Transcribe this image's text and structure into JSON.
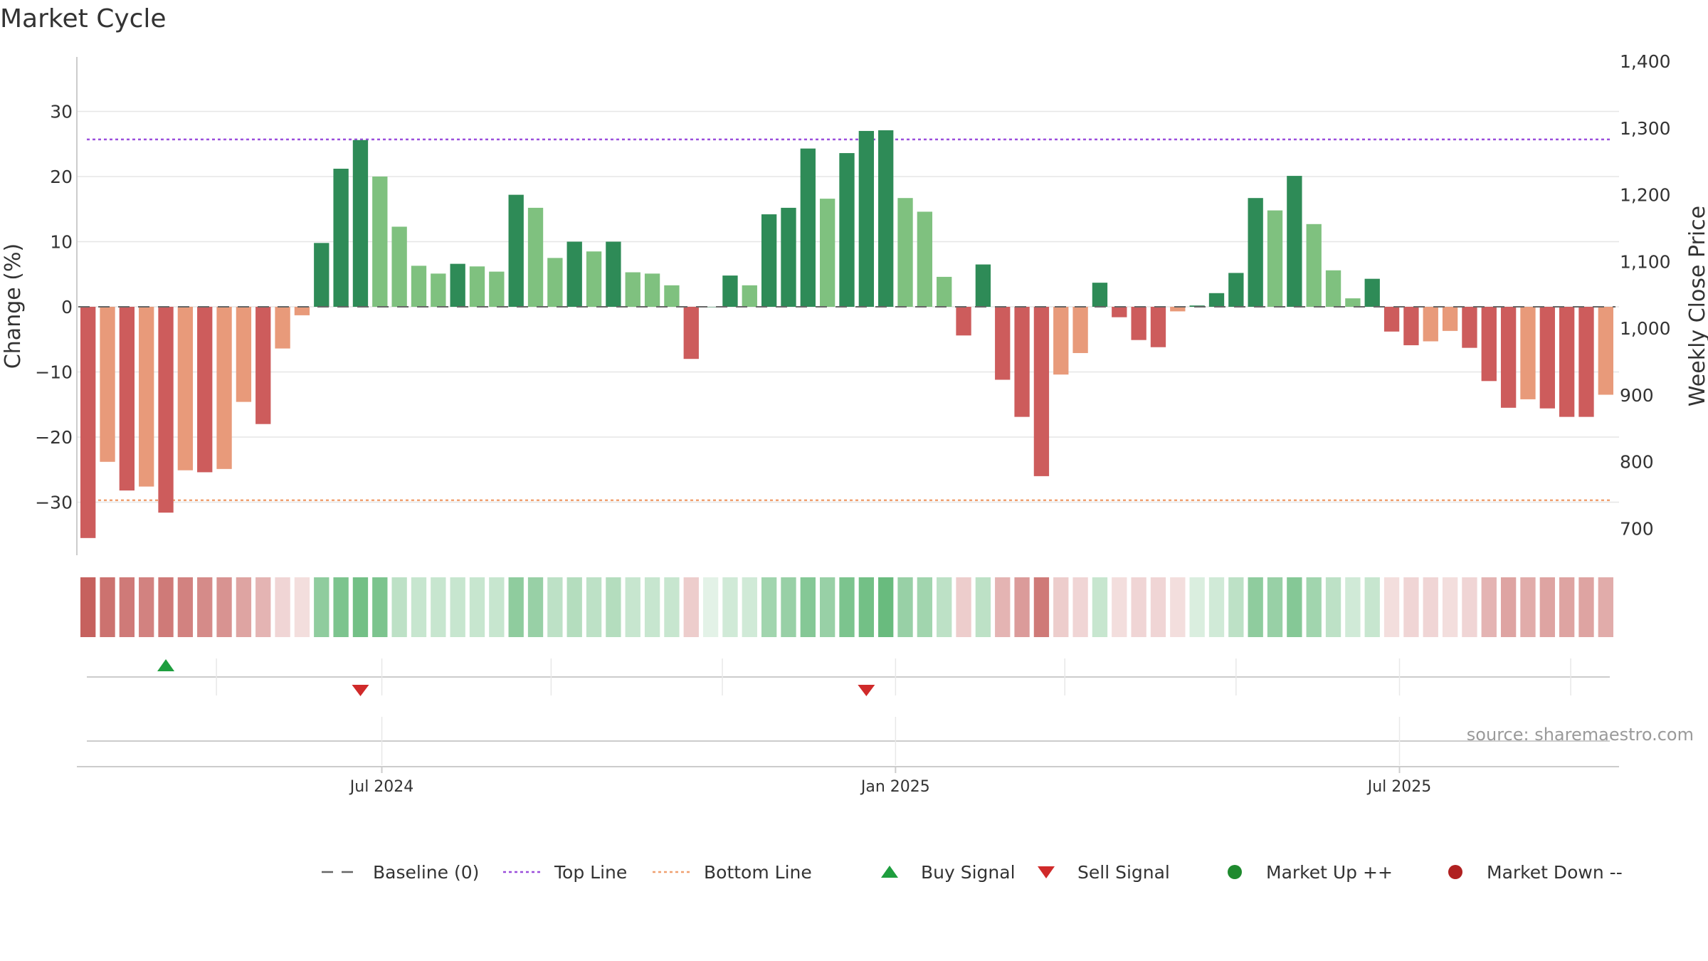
{
  "chart_data": {
    "type": "bar",
    "title": "Market Cycle",
    "ylabel_left": "Change (%)",
    "ylabel_right": "Weekly Close Price",
    "ylim_left": [
      -38,
      38
    ],
    "ylim_right": [
      662,
      1410
    ],
    "yticks_left": [
      {
        "value": 30,
        "label": "30"
      },
      {
        "value": 20,
        "label": "20"
      },
      {
        "value": 10,
        "label": "10"
      },
      {
        "value": 0,
        "label": "0"
      },
      {
        "value": -10,
        "label": "−10"
      },
      {
        "value": -20,
        "label": "−20"
      },
      {
        "value": -30,
        "label": "−30"
      }
    ],
    "yticks_right": [
      {
        "value": 1400,
        "label": "1,400"
      },
      {
        "value": 1300,
        "label": "1,300"
      },
      {
        "value": 1200,
        "label": "1,200"
      },
      {
        "value": 1100,
        "label": "1,100"
      },
      {
        "value": 1000,
        "label": "1,000"
      },
      {
        "value": 900,
        "label": "900"
      },
      {
        "value": 800,
        "label": "800"
      },
      {
        "value": 700,
        "label": "700"
      }
    ],
    "baseline": 0,
    "top_line": 25.7,
    "bottom_line": -29.7,
    "values": [
      -35.5,
      -23.8,
      -28.2,
      -27.6,
      -31.6,
      -25.1,
      -25.4,
      -24.9,
      -14.6,
      -18,
      -6.4,
      -1.3,
      9.8,
      21.2,
      25.6,
      20,
      12.3,
      6.3,
      5.1,
      6.6,
      6.2,
      5.4,
      17.2,
      15.2,
      7.5,
      10,
      8.5,
      10,
      5.3,
      5.1,
      3.3,
      -8,
      0,
      4.8,
      3.3,
      14.2,
      15.2,
      24.3,
      16.6,
      23.6,
      27,
      27.1,
      16.7,
      14.6,
      4.6,
      -4.4,
      6.5,
      -11.2,
      -16.9,
      -26,
      -10.4,
      -7.1,
      3.7,
      -1.6,
      -5.1,
      -6.2,
      -0.7,
      0.2,
      2.1,
      5.2,
      16.7,
      14.8,
      20.1,
      12.7,
      5.6,
      1.3,
      4.3,
      -3.8,
      -5.9,
      -5.3,
      -3.7,
      -6.3,
      -11.4,
      -15.5,
      -14.2,
      -15.6,
      -16.9,
      -16.9,
      -13.5
    ],
    "intensity_strip": [
      -0.95,
      -0.85,
      -0.8,
      -0.75,
      -0.8,
      -0.75,
      -0.7,
      -0.65,
      -0.55,
      -0.45,
      -0.25,
      -0.2,
      0.6,
      0.7,
      0.75,
      0.7,
      0.35,
      0.3,
      0.3,
      0.3,
      0.3,
      0.3,
      0.6,
      0.55,
      0.35,
      0.4,
      0.35,
      0.4,
      0.3,
      0.3,
      0.3,
      -0.3,
      0.15,
      0.25,
      0.25,
      0.5,
      0.55,
      0.65,
      0.55,
      0.7,
      0.75,
      0.8,
      0.55,
      0.5,
      0.35,
      -0.3,
      0.35,
      -0.45,
      -0.6,
      -0.8,
      -0.3,
      -0.25,
      0.3,
      -0.2,
      -0.25,
      -0.25,
      -0.2,
      0.2,
      0.25,
      0.35,
      0.6,
      0.55,
      0.65,
      0.5,
      0.35,
      0.25,
      0.3,
      -0.2,
      -0.25,
      -0.25,
      -0.2,
      -0.25,
      -0.45,
      -0.55,
      -0.5,
      -0.55,
      -0.55,
      -0.55,
      -0.5
    ],
    "buy_signals": [
      4
    ],
    "sell_signals": [
      14,
      40
    ],
    "date_ticks": [
      {
        "label": "Jul 2024",
        "index": 15.1
      },
      {
        "label": "Jan 2025",
        "index": 41.5
      },
      {
        "label": "Jul 2025",
        "index": 67.4
      }
    ],
    "minor_ticks": [
      6.6,
      15.1,
      23.8,
      32.6,
      41.5,
      50.2,
      59,
      67.4,
      76.2
    ],
    "legend": [
      {
        "label": "Baseline (0)",
        "marker": "dash",
        "color": "#666666"
      },
      {
        "label": "Top Line",
        "marker": "dotted",
        "color": "#9b4fdc"
      },
      {
        "label": "Bottom Line",
        "marker": "dotted",
        "color": "#f0a070"
      },
      {
        "label": "Buy Signal",
        "marker": "triangle-up",
        "color": "#1e9e3e"
      },
      {
        "label": "Sell Signal",
        "marker": "triangle-down",
        "color": "#d02a2a"
      },
      {
        "label": "Market Up ++",
        "marker": "circle",
        "color": "#1e8a2e"
      },
      {
        "label": "Market Down --",
        "marker": "circle",
        "color": "#b02020"
      }
    ],
    "source": "source: sharemaestro.com",
    "colors": {
      "strong_up": "#2e8b57",
      "up": "#7fc17f",
      "strong_down": "#cd5c5c",
      "down": "#e89a7a",
      "grid": "#e6e6e6"
    }
  }
}
